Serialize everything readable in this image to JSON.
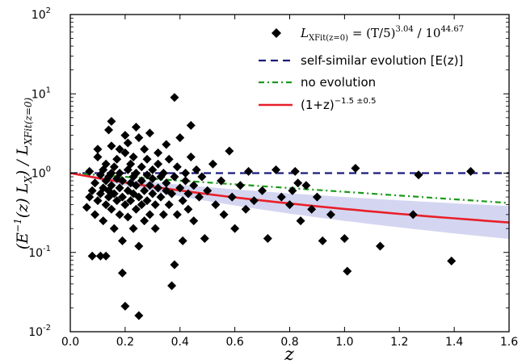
{
  "chart_data": {
    "type": "scatter",
    "xlabel": "z",
    "ylabel_parts": {
      "open": "(E",
      "pow1": "−1",
      "mid": "(z)  L",
      "sub1": "X",
      "sep": ")  /  L",
      "sub2": "XFit(z=0)"
    },
    "xlim": [
      0.0,
      1.6
    ],
    "ylim": [
      0.01,
      100
    ],
    "yscale": "log",
    "xticks": [
      "0.0",
      "0.2",
      "0.4",
      "0.6",
      "0.8",
      "1.0",
      "1.2",
      "1.4",
      "1.6"
    ],
    "yticks": [
      {
        "base": "10",
        "exp": "-2",
        "value": 0.01
      },
      {
        "base": "10",
        "exp": "-1",
        "value": 0.1
      },
      {
        "base": "10",
        "exp": "0",
        "value": 1
      },
      {
        "base": "10",
        "exp": "1",
        "value": 10
      },
      {
        "base": "10",
        "exp": "2",
        "value": 100
      }
    ],
    "legend_position": "top-right",
    "legend": {
      "data_label": {
        "L": "L",
        "sub": "XFit(z=0)",
        "eq": " = (T/5)",
        "exp1": "3.04",
        "div": " / 10",
        "exp2": "44.67"
      },
      "self_similar": "self-similar evolution [E(z)]",
      "no_evolution": "no evolution",
      "power_law": {
        "base": "(1+z)",
        "exp": "−1.5 ±0.5"
      }
    },
    "colors": {
      "points": "#000000",
      "self_similar": "#1a1a7a",
      "no_evolution": "#1a9a1a",
      "power_law": "#e8202a",
      "band": "#b8bbe8"
    },
    "lines": {
      "self_similar": [
        {
          "x": 0.0,
          "y": 1.0
        },
        {
          "x": 1.6,
          "y": 1.0
        }
      ],
      "no_evolution": [
        {
          "x": 0.0,
          "y": 1.0
        },
        {
          "x": 1.6,
          "y": 0.42
        }
      ],
      "power_law_index": -1.5,
      "power_law_band": [
        -1.0,
        -2.0
      ]
    },
    "points": [
      {
        "x": 0.06,
        "y": 0.37
      },
      {
        "x": 0.07,
        "y": 0.5
      },
      {
        "x": 0.07,
        "y": 1.05
      },
      {
        "x": 0.08,
        "y": 0.09
      },
      {
        "x": 0.08,
        "y": 0.6
      },
      {
        "x": 0.09,
        "y": 0.3
      },
      {
        "x": 0.09,
        "y": 0.75
      },
      {
        "x": 0.1,
        "y": 1.6
      },
      {
        "x": 0.1,
        "y": 2.0
      },
      {
        "x": 0.1,
        "y": 0.45
      },
      {
        "x": 0.11,
        "y": 0.09
      },
      {
        "x": 0.11,
        "y": 0.55
      },
      {
        "x": 0.11,
        "y": 0.95
      },
      {
        "x": 0.12,
        "y": 1.1
      },
      {
        "x": 0.12,
        "y": 0.25
      },
      {
        "x": 0.12,
        "y": 0.65
      },
      {
        "x": 0.13,
        "y": 0.09
      },
      {
        "x": 0.13,
        "y": 0.4
      },
      {
        "x": 0.13,
        "y": 0.8
      },
      {
        "x": 0.13,
        "y": 1.3
      },
      {
        "x": 0.14,
        "y": 3.5
      },
      {
        "x": 0.14,
        "y": 0.5
      },
      {
        "x": 0.14,
        "y": 0.6
      },
      {
        "x": 0.14,
        "y": 0.9
      },
      {
        "x": 0.15,
        "y": 4.5
      },
      {
        "x": 0.15,
        "y": 2.2
      },
      {
        "x": 0.15,
        "y": 1.0
      },
      {
        "x": 0.15,
        "y": 0.7
      },
      {
        "x": 0.15,
        "y": 0.35
      },
      {
        "x": 0.16,
        "y": 0.2
      },
      {
        "x": 0.16,
        "y": 0.55
      },
      {
        "x": 0.16,
        "y": 1.2
      },
      {
        "x": 0.17,
        "y": 0.85
      },
      {
        "x": 0.17,
        "y": 0.45
      },
      {
        "x": 0.17,
        "y": 1.5
      },
      {
        "x": 0.18,
        "y": 2.0
      },
      {
        "x": 0.18,
        "y": 0.3
      },
      {
        "x": 0.18,
        "y": 0.65
      },
      {
        "x": 0.18,
        "y": 1.0
      },
      {
        "x": 0.19,
        "y": 0.055
      },
      {
        "x": 0.19,
        "y": 0.14
      },
      {
        "x": 0.19,
        "y": 0.5
      },
      {
        "x": 0.19,
        "y": 0.8
      },
      {
        "x": 0.2,
        "y": 3.0
      },
      {
        "x": 0.2,
        "y": 1.8
      },
      {
        "x": 0.2,
        "y": 0.4
      },
      {
        "x": 0.2,
        "y": 0.021
      },
      {
        "x": 0.21,
        "y": 0.6
      },
      {
        "x": 0.21,
        "y": 1.1
      },
      {
        "x": 0.21,
        "y": 0.28
      },
      {
        "x": 0.21,
        "y": 2.4
      },
      {
        "x": 0.22,
        "y": 0.75
      },
      {
        "x": 0.22,
        "y": 0.45
      },
      {
        "x": 0.22,
        "y": 1.3
      },
      {
        "x": 0.23,
        "y": 0.55
      },
      {
        "x": 0.23,
        "y": 0.2
      },
      {
        "x": 0.23,
        "y": 0.9
      },
      {
        "x": 0.23,
        "y": 1.6
      },
      {
        "x": 0.24,
        "y": 0.35
      },
      {
        "x": 0.24,
        "y": 0.7
      },
      {
        "x": 0.24,
        "y": 3.8
      },
      {
        "x": 0.24,
        "y": 1.0
      },
      {
        "x": 0.25,
        "y": 0.5
      },
      {
        "x": 0.25,
        "y": 0.12
      },
      {
        "x": 0.25,
        "y": 0.016
      },
      {
        "x": 0.25,
        "y": 2.8
      },
      {
        "x": 0.26,
        "y": 0.8
      },
      {
        "x": 0.26,
        "y": 0.4
      },
      {
        "x": 0.26,
        "y": 1.2
      },
      {
        "x": 0.27,
        "y": 0.6
      },
      {
        "x": 0.27,
        "y": 2.0
      },
      {
        "x": 0.27,
        "y": 0.25
      },
      {
        "x": 0.28,
        "y": 0.95
      },
      {
        "x": 0.28,
        "y": 0.45
      },
      {
        "x": 0.28,
        "y": 1.5
      },
      {
        "x": 0.29,
        "y": 0.7
      },
      {
        "x": 0.29,
        "y": 3.2
      },
      {
        "x": 0.29,
        "y": 0.3
      },
      {
        "x": 0.3,
        "y": 0.55
      },
      {
        "x": 0.3,
        "y": 1.1
      },
      {
        "x": 0.3,
        "y": 0.85
      },
      {
        "x": 0.31,
        "y": 0.4
      },
      {
        "x": 0.31,
        "y": 0.2
      },
      {
        "x": 0.32,
        "y": 1.3
      },
      {
        "x": 0.32,
        "y": 0.65
      },
      {
        "x": 0.32,
        "y": 1.8
      },
      {
        "x": 0.33,
        "y": 0.9
      },
      {
        "x": 0.33,
        "y": 0.5
      },
      {
        "x": 0.34,
        "y": 0.3
      },
      {
        "x": 0.34,
        "y": 1.0
      },
      {
        "x": 0.35,
        "y": 2.3
      },
      {
        "x": 0.35,
        "y": 0.6
      },
      {
        "x": 0.35,
        "y": 0.75
      },
      {
        "x": 0.36,
        "y": 0.4
      },
      {
        "x": 0.36,
        "y": 1.5
      },
      {
        "x": 0.37,
        "y": 0.038
      },
      {
        "x": 0.37,
        "y": 0.55
      },
      {
        "x": 0.38,
        "y": 9.0
      },
      {
        "x": 0.38,
        "y": 0.07
      },
      {
        "x": 0.38,
        "y": 0.9
      },
      {
        "x": 0.39,
        "y": 0.3
      },
      {
        "x": 0.39,
        "y": 1.2
      },
      {
        "x": 0.4,
        "y": 0.65
      },
      {
        "x": 0.4,
        "y": 2.8
      },
      {
        "x": 0.41,
        "y": 0.45
      },
      {
        "x": 0.41,
        "y": 0.14
      },
      {
        "x": 0.42,
        "y": 0.8
      },
      {
        "x": 0.42,
        "y": 1.0
      },
      {
        "x": 0.43,
        "y": 0.35
      },
      {
        "x": 0.43,
        "y": 0.55
      },
      {
        "x": 0.44,
        "y": 4.0
      },
      {
        "x": 0.44,
        "y": 1.6
      },
      {
        "x": 0.45,
        "y": 0.7
      },
      {
        "x": 0.45,
        "y": 0.25
      },
      {
        "x": 0.46,
        "y": 1.1
      },
      {
        "x": 0.47,
        "y": 0.5
      },
      {
        "x": 0.48,
        "y": 0.9
      },
      {
        "x": 0.49,
        "y": 0.15
      },
      {
        "x": 0.5,
        "y": 0.6
      },
      {
        "x": 0.52,
        "y": 1.3
      },
      {
        "x": 0.53,
        "y": 0.4
      },
      {
        "x": 0.55,
        "y": 0.8
      },
      {
        "x": 0.56,
        "y": 0.3
      },
      {
        "x": 0.58,
        "y": 1.9
      },
      {
        "x": 0.59,
        "y": 0.5
      },
      {
        "x": 0.6,
        "y": 0.2
      },
      {
        "x": 0.62,
        "y": 0.7
      },
      {
        "x": 0.64,
        "y": 0.35
      },
      {
        "x": 0.65,
        "y": 1.05
      },
      {
        "x": 0.67,
        "y": 0.45
      },
      {
        "x": 0.7,
        "y": 0.6
      },
      {
        "x": 0.72,
        "y": 0.15
      },
      {
        "x": 0.75,
        "y": 1.1
      },
      {
        "x": 0.77,
        "y": 0.5
      },
      {
        "x": 0.8,
        "y": 0.4
      },
      {
        "x": 0.81,
        "y": 0.6
      },
      {
        "x": 0.82,
        "y": 1.05
      },
      {
        "x": 0.83,
        "y": 0.75
      },
      {
        "x": 0.84,
        "y": 0.25
      },
      {
        "x": 0.86,
        "y": 0.7
      },
      {
        "x": 0.88,
        "y": 0.35
      },
      {
        "x": 0.9,
        "y": 0.5
      },
      {
        "x": 0.92,
        "y": 0.14
      },
      {
        "x": 0.95,
        "y": 0.3
      },
      {
        "x": 1.0,
        "y": 0.15
      },
      {
        "x": 1.01,
        "y": 0.058
      },
      {
        "x": 1.04,
        "y": 1.15
      },
      {
        "x": 1.13,
        "y": 0.12
      },
      {
        "x": 1.25,
        "y": 0.3
      },
      {
        "x": 1.27,
        "y": 0.95
      },
      {
        "x": 1.39,
        "y": 0.078
      },
      {
        "x": 1.46,
        "y": 1.05
      }
    ]
  }
}
